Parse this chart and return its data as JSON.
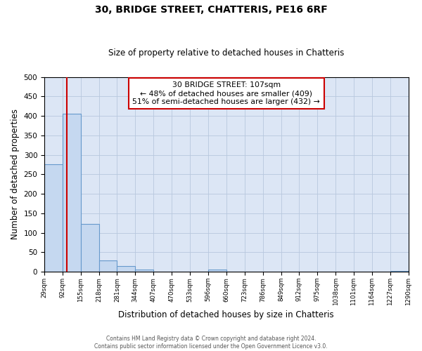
{
  "title": "30, BRIDGE STREET, CHATTERIS, PE16 6RF",
  "subtitle": "Size of property relative to detached houses in Chatteris",
  "xlabel": "Distribution of detached houses by size in Chatteris",
  "ylabel": "Number of detached properties",
  "bin_edges": [
    29,
    92,
    155,
    218,
    281,
    344,
    407,
    470,
    533,
    596,
    660,
    723,
    786,
    849,
    912,
    975,
    1038,
    1101,
    1164,
    1227,
    1290
  ],
  "bin_labels": [
    "29sqm",
    "92sqm",
    "155sqm",
    "218sqm",
    "281sqm",
    "344sqm",
    "407sqm",
    "470sqm",
    "533sqm",
    "596sqm",
    "660sqm",
    "723sqm",
    "786sqm",
    "849sqm",
    "912sqm",
    "975sqm",
    "1038sqm",
    "1101sqm",
    "1164sqm",
    "1227sqm",
    "1290sqm"
  ],
  "bar_heights": [
    275,
    405,
    122,
    29,
    15,
    5,
    0,
    0,
    0,
    6,
    0,
    0,
    0,
    0,
    0,
    0,
    0,
    0,
    0,
    2
  ],
  "bar_color": "#c5d8f0",
  "bar_edge_color": "#6699cc",
  "property_line_x": 107,
  "property_line_color": "#cc0000",
  "annotation_title": "30 BRIDGE STREET: 107sqm",
  "annotation_line1": "← 48% of detached houses are smaller (409)",
  "annotation_line2": "51% of semi-detached houses are larger (432) →",
  "annotation_box_color": "#ffffff",
  "annotation_box_edge": "#cc0000",
  "ylim": [
    0,
    500
  ],
  "background_color": "#dce6f5",
  "footer1": "Contains HM Land Registry data © Crown copyright and database right 2024.",
  "footer2": "Contains public sector information licensed under the Open Government Licence v3.0."
}
